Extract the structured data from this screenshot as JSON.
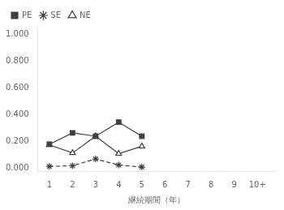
{
  "chart_data": {
    "type": "line",
    "x": [
      1,
      2,
      3,
      4,
      5
    ],
    "series": [
      {
        "name": "PE",
        "color": "#404040",
        "values": [
          0.18,
          0.265,
          0.24,
          0.345,
          0.24
        ],
        "marker": "square",
        "line_style": "solid"
      },
      {
        "name": "SE",
        "color": "#404040",
        "values": [
          0.015,
          0.02,
          0.07,
          0.025,
          0.01
        ],
        "marker": "star",
        "line_style": "dashed"
      },
      {
        "name": "NE",
        "color": "#404040",
        "values": [
          0.175,
          0.115,
          0.24,
          0.11,
          0.165
        ],
        "marker": "triangle-open",
        "line_style": "solid"
      }
    ],
    "xlabel": "継続期間（年）",
    "xlim": [
      0.5,
      10.8
    ],
    "xticks": [
      1,
      2,
      3,
      4,
      5,
      6,
      7,
      8,
      9,
      {
        "value": 10,
        "label": "10+"
      }
    ],
    "ylim": [
      -0.02,
      1.05
    ],
    "yticks": [
      {
        "value": 0.0,
        "label": "0.000"
      },
      {
        "value": 0.2,
        "label": "0.200"
      },
      {
        "value": 0.4,
        "label": "0.400"
      },
      {
        "value": 0.6,
        "label": "0.600"
      },
      {
        "value": 0.8,
        "label": "0.800"
      },
      {
        "value": 1.0,
        "label": "1.000"
      }
    ],
    "grid": false,
    "legend": "upper left"
  }
}
